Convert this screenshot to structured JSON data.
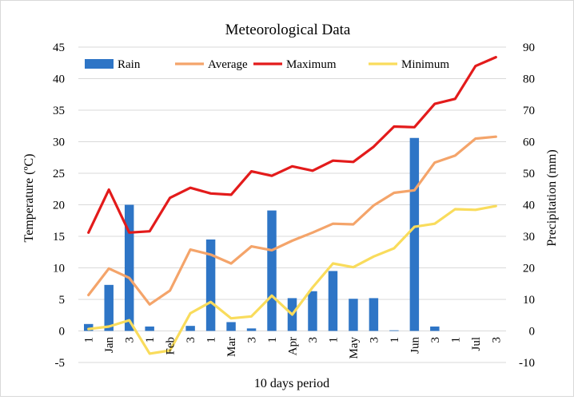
{
  "chart_data": {
    "type": "bar+line",
    "title": "Meteorological Data",
    "xlabel": "10 days period",
    "ylabel_left": "Temperature (ºC)",
    "ylabel_right": "Precipitation (mm)",
    "ylim_left": [
      -5,
      45
    ],
    "ylim_right": [
      -10,
      90
    ],
    "yticks_left": [
      -5,
      0,
      5,
      10,
      15,
      20,
      25,
      30,
      35,
      40,
      45
    ],
    "yticks_right": [
      -10,
      0,
      10,
      20,
      30,
      40,
      50,
      60,
      70,
      80,
      90
    ],
    "grid": true,
    "legend_position": "top",
    "x_tick_labels": [
      "1",
      "Jan",
      "3",
      "1",
      "Feb",
      "3",
      "1",
      "Mar",
      "3",
      "1",
      "Apr",
      "3",
      "1",
      "May",
      "3",
      "1",
      "Jun",
      "3",
      "1",
      "Jul",
      "3"
    ],
    "series": [
      {
        "name": "Rain",
        "kind": "bar",
        "axis": "right",
        "color": "#2e75c6",
        "values": [
          2.2,
          14.6,
          40.0,
          1.4,
          0,
          1.6,
          29.0,
          2.8,
          0.8,
          38.2,
          10.4,
          12.6,
          19.0,
          10.2,
          10.4,
          0.2,
          61.2,
          1.4,
          0,
          0,
          0
        ]
      },
      {
        "name": "Average",
        "kind": "line",
        "axis": "left",
        "color": "#f4a46a",
        "values": [
          5.7,
          9.9,
          8.4,
          4.2,
          6.4,
          12.9,
          12.1,
          10.7,
          13.4,
          12.8,
          14.3,
          15.6,
          17.0,
          16.9,
          19.9,
          21.9,
          22.3,
          26.7,
          27.8,
          30.5,
          30.8
        ]
      },
      {
        "name": "Maximum",
        "kind": "line",
        "axis": "left",
        "color": "#e31b1b",
        "values": [
          15.6,
          22.4,
          15.6,
          15.8,
          21.1,
          22.7,
          21.8,
          21.6,
          25.3,
          24.6,
          26.1,
          25.4,
          27.0,
          26.8,
          29.2,
          32.4,
          32.3,
          36.0,
          36.8,
          42.0,
          43.4
        ]
      },
      {
        "name": "Minimum",
        "kind": "line",
        "axis": "left",
        "color": "#f9dc5c",
        "values": [
          0.3,
          0.7,
          1.7,
          -3.6,
          -3.1,
          2.8,
          4.6,
          2.0,
          2.3,
          5.6,
          2.6,
          6.9,
          10.7,
          10.1,
          11.8,
          13.1,
          16.5,
          17.0,
          19.3,
          19.2,
          19.8
        ]
      }
    ]
  }
}
